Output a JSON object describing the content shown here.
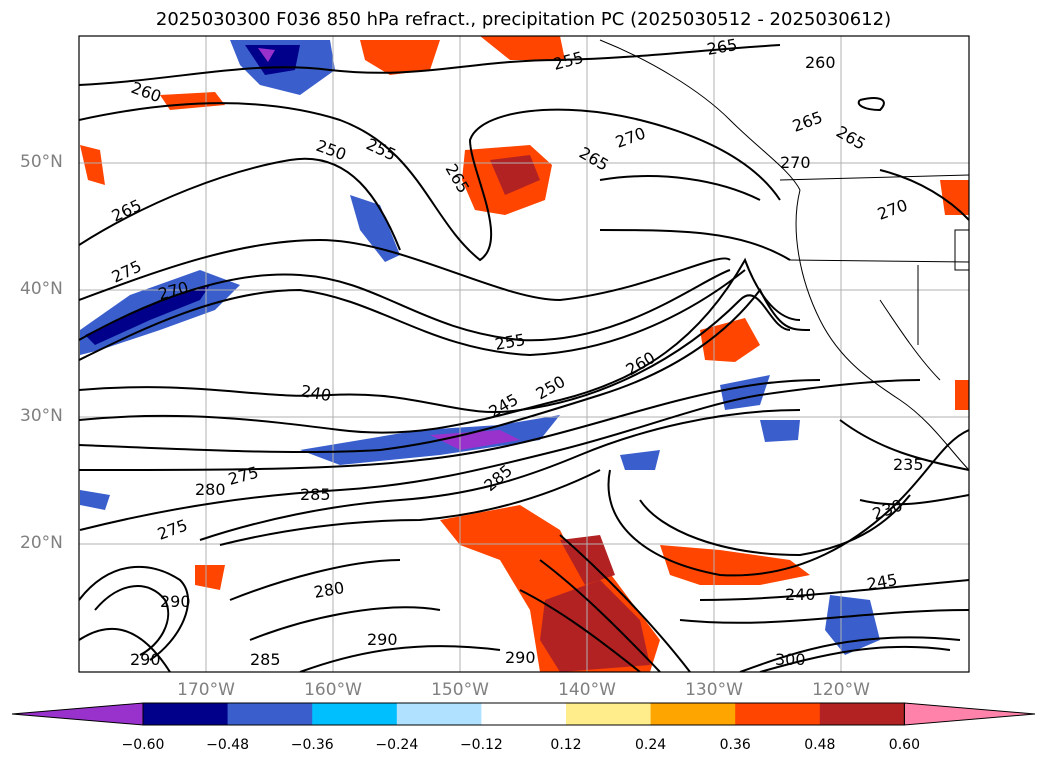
{
  "title": "2025030300 F036 850 hPa refract., precipitation PC (2025030512 - 2025030612)",
  "chart_data": {
    "type": "heatmap",
    "title": "2025030300 F036 850 hPa refract., precipitation PC (2025030512 - 2025030612)",
    "lat_ticks": [
      "50°N",
      "40°N",
      "30°N",
      "20°N"
    ],
    "lon_ticks": [
      "170°W",
      "160°W",
      "150°W",
      "140°W",
      "130°W",
      "120°W"
    ],
    "lat_values": [
      50,
      40,
      30,
      20
    ],
    "lon_values": [
      -170,
      -160,
      -150,
      -140,
      -130,
      -120
    ],
    "lon_range": [
      -180,
      -110
    ],
    "lat_range": [
      10,
      60
    ],
    "grid": true,
    "colorbar": {
      "ticks": [
        "−0.60",
        "−0.48",
        "−0.36",
        "−0.24",
        "−0.12",
        "0.12",
        "0.24",
        "0.36",
        "0.48",
        "0.60"
      ],
      "tick_values": [
        -0.6,
        -0.48,
        -0.36,
        -0.24,
        -0.12,
        0.12,
        0.24,
        0.36,
        0.48,
        0.6
      ],
      "colors": [
        "#9932cc",
        "#00008b",
        "#3a5fcd",
        "#00bfff",
        "#b0e2ff",
        "#ffffff",
        "#ffec8b",
        "#ffa500",
        "#ff4500",
        "#b22222",
        "#ff82ab"
      ],
      "extend": "both"
    },
    "contour_labels": [
      "260",
      "250",
      "255",
      "265",
      "265",
      "270",
      "255",
      "265",
      "260",
      "265",
      "265",
      "270",
      "275",
      "270",
      "270",
      "255",
      "240",
      "245",
      "250",
      "260",
      "280",
      "275",
      "280",
      "285",
      "230",
      "235",
      "240",
      "245",
      "275",
      "280",
      "290",
      "290",
      "285",
      "290",
      "290",
      "290",
      "300"
    ]
  }
}
